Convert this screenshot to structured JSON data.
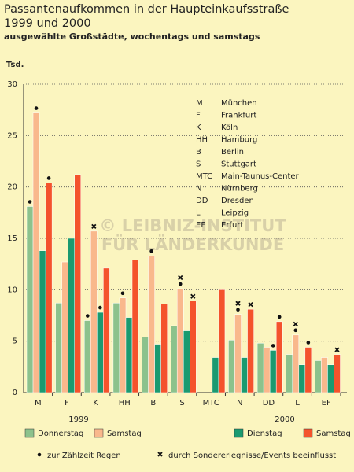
{
  "chart_data": {
    "type": "bar",
    "title": [
      "Passantenaufkommen in der Haupteinkaufsstraße",
      "1999 und 2000"
    ],
    "subtitle": "ausgewählte Großstädte, wochentags und samstags",
    "y_label": "Tsd.",
    "categories": [
      "M",
      "F",
      "K",
      "HH",
      "B",
      "S",
      "MTC",
      "N",
      "DD",
      "L",
      "EF"
    ],
    "ylim": [
      0,
      30
    ],
    "yticks": [
      0,
      5,
      10,
      15,
      20,
      25,
      30
    ],
    "grid": true,
    "series_groups": [
      {
        "name": "1999",
        "series": [
          {
            "name": "Donnerstag",
            "color": "#8cc28c",
            "values": [
              18.1,
              8.7,
              7.0,
              8.7,
              5.4,
              6.5,
              null,
              5.1,
              4.8,
              3.7,
              3.1
            ],
            "rain": [
              true,
              false,
              true,
              false,
              false,
              false,
              false,
              false,
              false,
              false,
              false
            ],
            "event": [
              false,
              false,
              false,
              false,
              false,
              false,
              false,
              false,
              false,
              false,
              false
            ]
          },
          {
            "name": "Samstag",
            "color": "#f9b88c",
            "values": [
              27.2,
              12.7,
              15.7,
              9.2,
              13.3,
              10.1,
              null,
              7.6,
              4.4,
              5.6,
              3.4
            ],
            "rain": [
              true,
              false,
              false,
              true,
              true,
              true,
              false,
              true,
              false,
              true,
              false
            ],
            "event": [
              false,
              false,
              true,
              false,
              false,
              true,
              false,
              true,
              false,
              true,
              false
            ]
          }
        ]
      },
      {
        "name": "2000",
        "series": [
          {
            "name": "Dienstag",
            "color": "#1a9a70",
            "values": [
              13.8,
              15.0,
              7.8,
              7.3,
              4.7,
              6.0,
              3.4,
              3.4,
              4.1,
              2.7,
              2.7
            ],
            "rain": [
              false,
              false,
              true,
              false,
              false,
              false,
              false,
              false,
              true,
              false,
              false
            ],
            "event": [
              false,
              false,
              false,
              false,
              false,
              false,
              false,
              false,
              false,
              false,
              false
            ]
          },
          {
            "name": "Samstag",
            "color": "#f4532c",
            "values": [
              20.4,
              21.2,
              12.1,
              12.9,
              8.6,
              8.9,
              10.0,
              8.1,
              6.9,
              4.4,
              3.7
            ],
            "rain": [
              true,
              false,
              false,
              false,
              false,
              false,
              false,
              false,
              true,
              true,
              false
            ],
            "event": [
              false,
              false,
              false,
              false,
              false,
              true,
              false,
              true,
              false,
              false,
              true
            ]
          }
        ]
      }
    ],
    "key": [
      {
        "abbr": "M",
        "name": "München"
      },
      {
        "abbr": "F",
        "name": "Frankfurt"
      },
      {
        "abbr": "K",
        "name": "Köln"
      },
      {
        "abbr": "HH",
        "name": "Hamburg"
      },
      {
        "abbr": "B",
        "name": "Berlin"
      },
      {
        "abbr": "S",
        "name": "Stuttgart"
      },
      {
        "abbr": "MTC",
        "name": "Main-Taunus-Center"
      },
      {
        "abbr": "N",
        "name": "Nürnberg"
      },
      {
        "abbr": "DD",
        "name": "Dresden"
      },
      {
        "abbr": "L",
        "name": "Leipzig"
      },
      {
        "abbr": "EF",
        "name": "Erfurt"
      }
    ],
    "rain_note": "zur Zählzeit Regen",
    "event_note": "durch Sondereriegnisse/Events beeinflusst",
    "watermark": [
      "© LEIBNIZ-INSTITUT",
      "FÜR LÄNDERKUNDE"
    ]
  }
}
